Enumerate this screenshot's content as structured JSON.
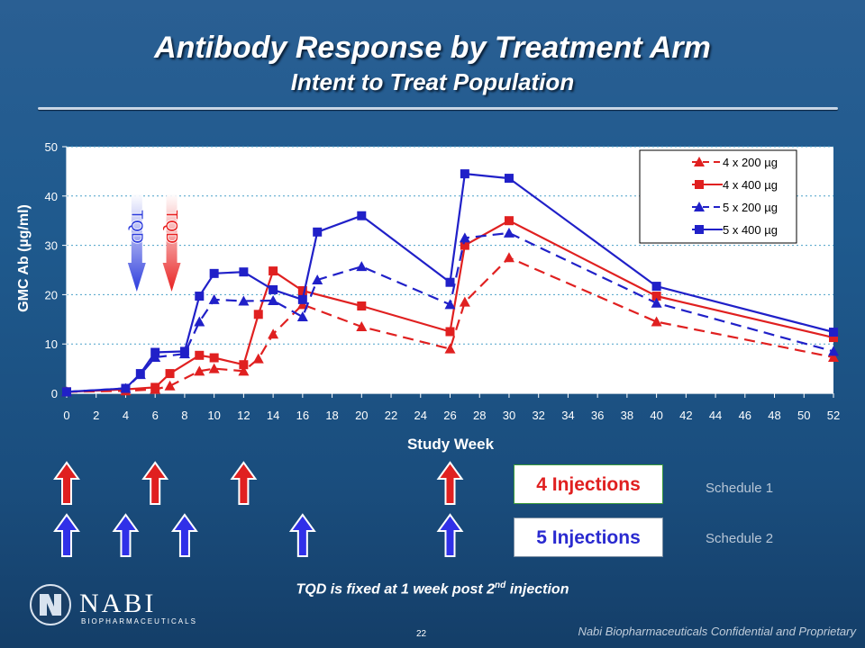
{
  "header": {
    "title": "Antibody Response by Treatment Arm",
    "subtitle": "Intent to Treat Population"
  },
  "chart_data": {
    "type": "line",
    "xlabel": "Study Week",
    "ylabel": "GMC Ab (µg/ml)",
    "xlim": [
      0,
      52
    ],
    "ylim": [
      0,
      50
    ],
    "x_ticks": [
      "0",
      "2",
      "4",
      "6",
      "8",
      "10",
      "12",
      "14",
      "16",
      "18",
      "20",
      "22",
      "24",
      "26",
      "28",
      "30",
      "32",
      "34",
      "36",
      "38",
      "40",
      "42",
      "44",
      "46",
      "48",
      "50",
      "52"
    ],
    "y_ticks": [
      "0",
      "10",
      "20",
      "30",
      "40",
      "50"
    ],
    "grid": true,
    "legend_position": "top-right",
    "series": [
      {
        "name": "4 x 200 µg",
        "color": "#e02020",
        "style": "dashed",
        "marker": "triangle",
        "x": [
          0,
          4,
          6,
          7,
          9,
          10,
          12,
          13,
          14,
          16,
          20,
          26,
          27,
          30,
          40,
          52
        ],
        "y": [
          0.3,
          0.5,
          0.8,
          1.5,
          4.5,
          5,
          4.5,
          7,
          12,
          18,
          13.5,
          9,
          18.5,
          27.5,
          14.5,
          7.3
        ]
      },
      {
        "name": "4 x 400 µg",
        "color": "#e02020",
        "style": "solid",
        "marker": "square",
        "x": [
          0,
          4,
          6,
          7,
          9,
          10,
          12,
          13,
          14,
          16,
          20,
          26,
          27,
          30,
          40,
          52
        ],
        "y": [
          0.3,
          0.8,
          1.2,
          4,
          7.7,
          7.2,
          5.8,
          16,
          24.8,
          20.8,
          17.7,
          12.5,
          30,
          35,
          19.7,
          11.3
        ]
      },
      {
        "name": "5 x 200 µg",
        "color": "#2020c8",
        "style": "dashed",
        "marker": "triangle",
        "x": [
          0,
          4,
          5,
          6,
          8,
          9,
          10,
          12,
          14,
          16,
          17,
          20,
          26,
          27,
          30,
          40,
          52
        ],
        "y": [
          0.3,
          1,
          3.8,
          7.3,
          8,
          14.5,
          19,
          18.7,
          18.8,
          15.5,
          23,
          25.7,
          18,
          31.5,
          32.5,
          18.3,
          8.5
        ]
      },
      {
        "name": "5 x 400 µg",
        "color": "#2020c8",
        "style": "solid",
        "marker": "square",
        "x": [
          0,
          4,
          5,
          6,
          8,
          9,
          10,
          12,
          14,
          16,
          17,
          20,
          26,
          27,
          30,
          40,
          52
        ],
        "y": [
          0.3,
          1,
          4,
          8.3,
          8.5,
          19.7,
          24.3,
          24.6,
          21,
          19,
          32.7,
          36,
          22.5,
          44.5,
          43.6,
          21.7,
          12.4
        ]
      }
    ],
    "tqd_markers": [
      {
        "label": "TQD",
        "week": 5,
        "color": "#2a3adc"
      },
      {
        "label": "TQD",
        "week": 7,
        "color": "#e82020"
      }
    ]
  },
  "injections": {
    "schedule_1_weeks": [
      0,
      6,
      12,
      26
    ],
    "schedule_2_weeks": [
      0,
      4,
      8,
      16,
      26
    ],
    "label_4": "4 Injections",
    "label_5": "5 Injections",
    "schedule_1_label": "Schedule 1",
    "schedule_2_label": "Schedule 2"
  },
  "note": {
    "before": "TQD is fixed at 1 week post 2",
    "sup": "nd",
    "after": " injection"
  },
  "footer": {
    "page_number": "22",
    "confidential": "Nabi Biopharmaceuticals Confidential and Proprietary",
    "logo_name": "NABI",
    "logo_sub": "BIOPHARMACEUTICALS"
  },
  "colors": {
    "red": "#e02020",
    "blue": "#2020c8",
    "background": "#1f5a8e"
  }
}
